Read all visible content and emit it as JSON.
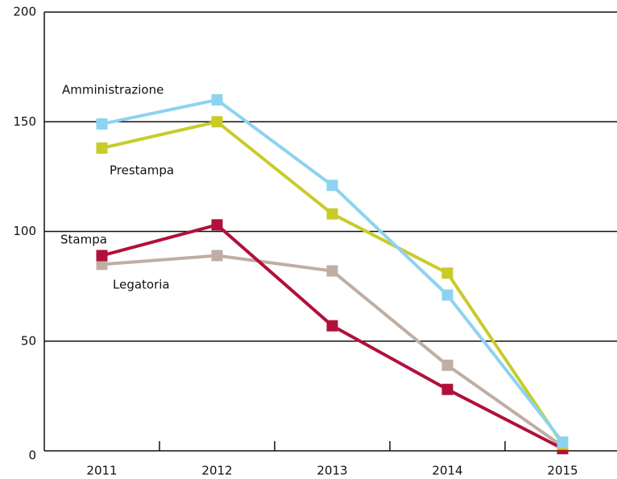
{
  "chart_data": {
    "type": "line",
    "categories": [
      "2011",
      "2012",
      "2013",
      "2014",
      "2015"
    ],
    "series": [
      {
        "name": "Legatoria",
        "color": "#bfaea3",
        "values": [
          85,
          89,
          82,
          39,
          2
        ]
      },
      {
        "name": "Stampa",
        "color": "#b0113a",
        "values": [
          89,
          103,
          57,
          28,
          1
        ]
      },
      {
        "name": "Prestampa",
        "color": "#c8cc2a",
        "values": [
          138,
          150,
          108,
          81,
          3
        ]
      },
      {
        "name": "Amministrazione",
        "color": "#8dd3ef",
        "values": [
          149,
          160,
          121,
          71,
          4
        ]
      }
    ],
    "ylim": [
      0,
      200
    ],
    "yticks": [
      0,
      50,
      100,
      150,
      200
    ],
    "grid": true
  }
}
